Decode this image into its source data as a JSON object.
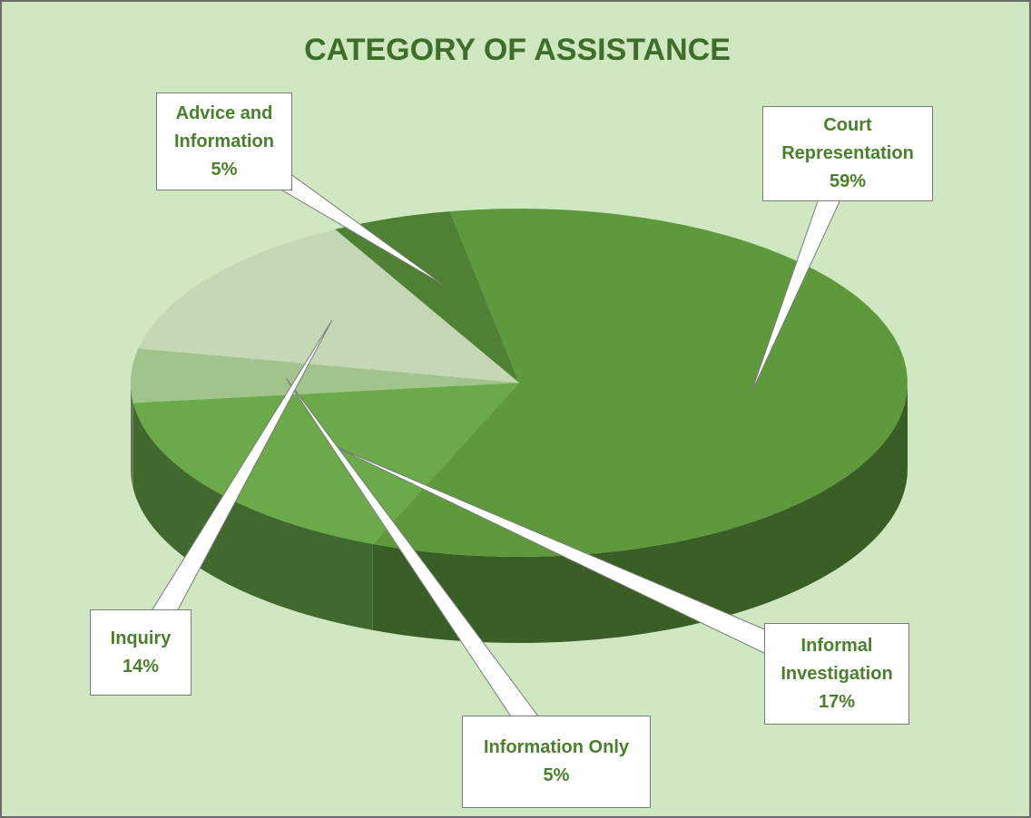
{
  "chart_data": {
    "type": "pie",
    "title": "CATEGORY OF ASSISTANCE",
    "categories": [
      "Court Representation",
      "Informal Investigation",
      "Information Only",
      "Inquiry",
      "Advice and Information"
    ],
    "values": [
      59,
      17,
      5,
      14,
      5
    ],
    "value_labels": [
      "59%",
      "17%",
      "5%",
      "14%",
      "5%"
    ],
    "colors": [
      "#5e9a3c",
      "#6aaa48",
      "#a2c48c",
      "#c4d8b6",
      "#4f8134"
    ]
  }
}
